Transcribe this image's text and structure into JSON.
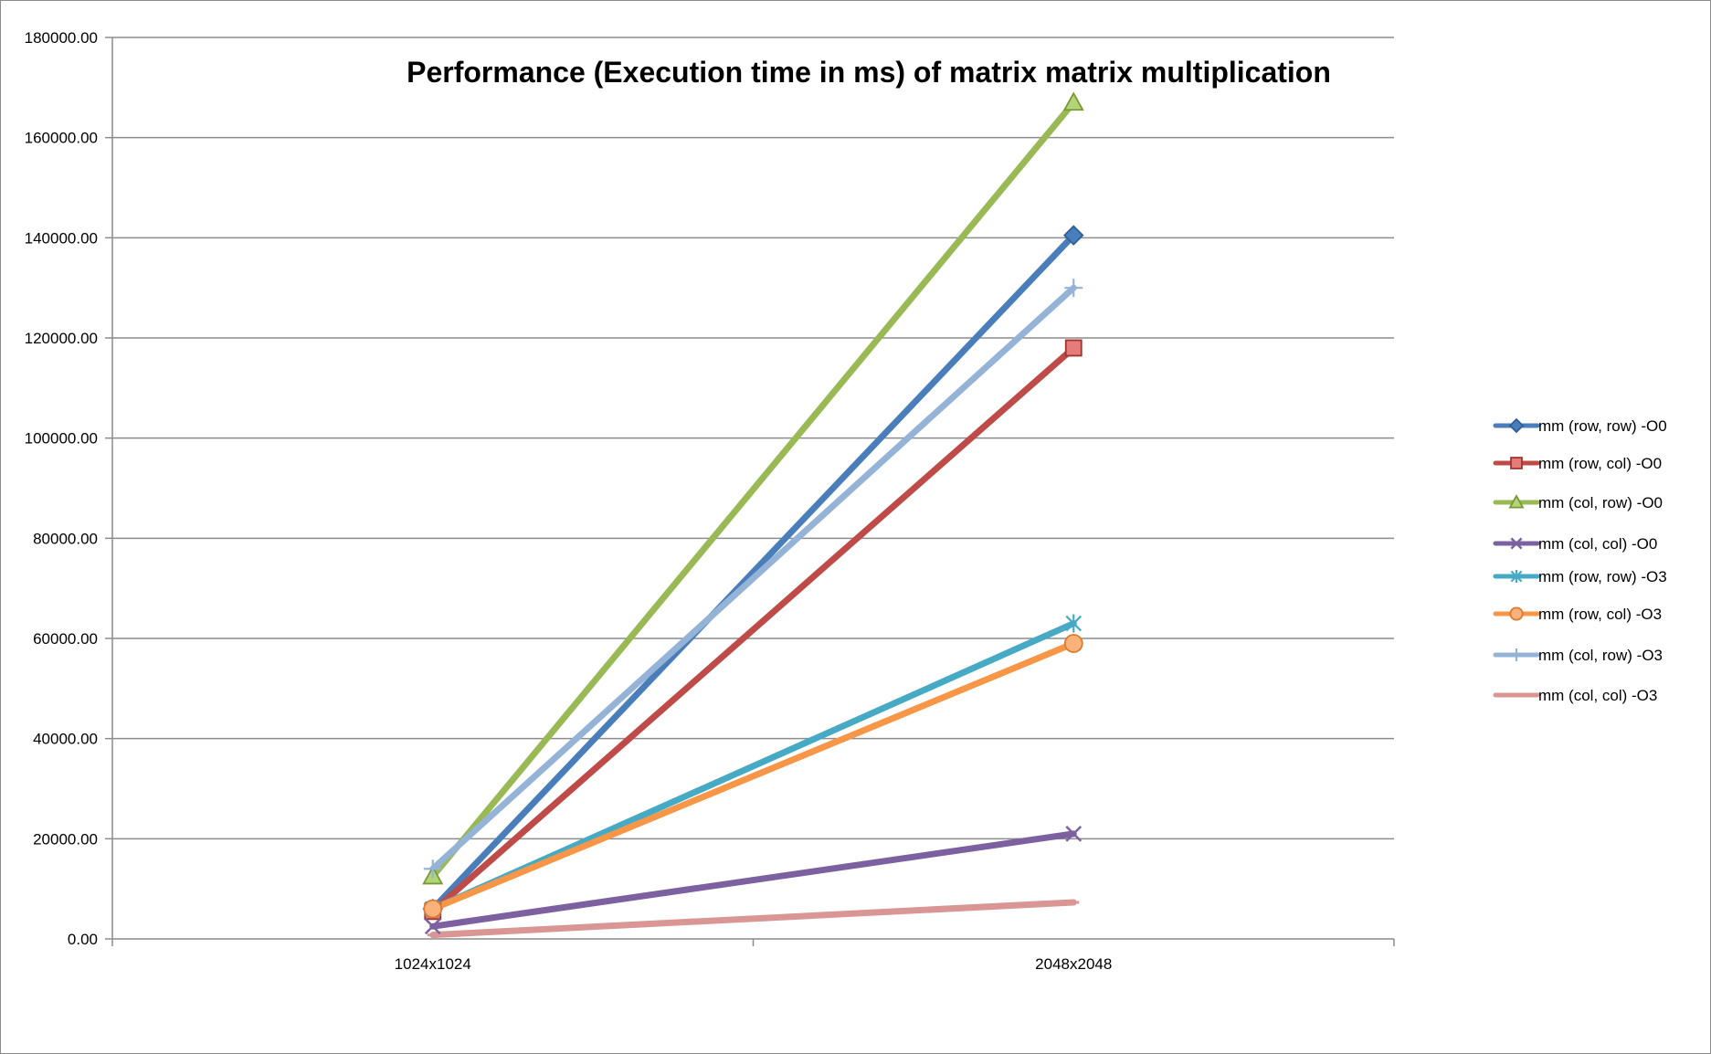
{
  "chart_data": {
    "type": "line",
    "title": "Performance (Execution time in ms) of matrix matrix multiplication",
    "xlabel": "",
    "ylabel": "",
    "categories": [
      "1024x1024",
      "2048x2048"
    ],
    "ylim": [
      0,
      180000
    ],
    "ytick_step": 20000,
    "ytick_format_decimals": 2,
    "grid": "horizontal",
    "legend_position": "right",
    "series": [
      {
        "name": "mm (row, row) -O0",
        "values": [
          6000,
          140500
        ],
        "color": "#4a7ebb",
        "marker": "diamond"
      },
      {
        "name": "mm (row, col) -O0",
        "values": [
          5500,
          118000
        ],
        "color": "#be4b48",
        "marker": "square"
      },
      {
        "name": "mm (col, row) -O0",
        "values": [
          12500,
          167000
        ],
        "color": "#98b954",
        "marker": "triangle"
      },
      {
        "name": "mm (col, col) -O0",
        "values": [
          2500,
          21000
        ],
        "color": "#7d60a0",
        "marker": "x"
      },
      {
        "name": "mm (row, row) -O3",
        "values": [
          6000,
          63000
        ],
        "color": "#46aac5",
        "marker": "star"
      },
      {
        "name": "mm (row, col) -O3",
        "values": [
          6000,
          59000
        ],
        "color": "#f79646",
        "marker": "circle"
      },
      {
        "name": "mm (col, row) -O3",
        "values": [
          14000,
          130000
        ],
        "color": "#95b3d7",
        "marker": "plus"
      },
      {
        "name": "mm (col, col) -O3",
        "values": [
          800,
          7300
        ],
        "color": "#d99694",
        "marker": "dash"
      }
    ]
  }
}
